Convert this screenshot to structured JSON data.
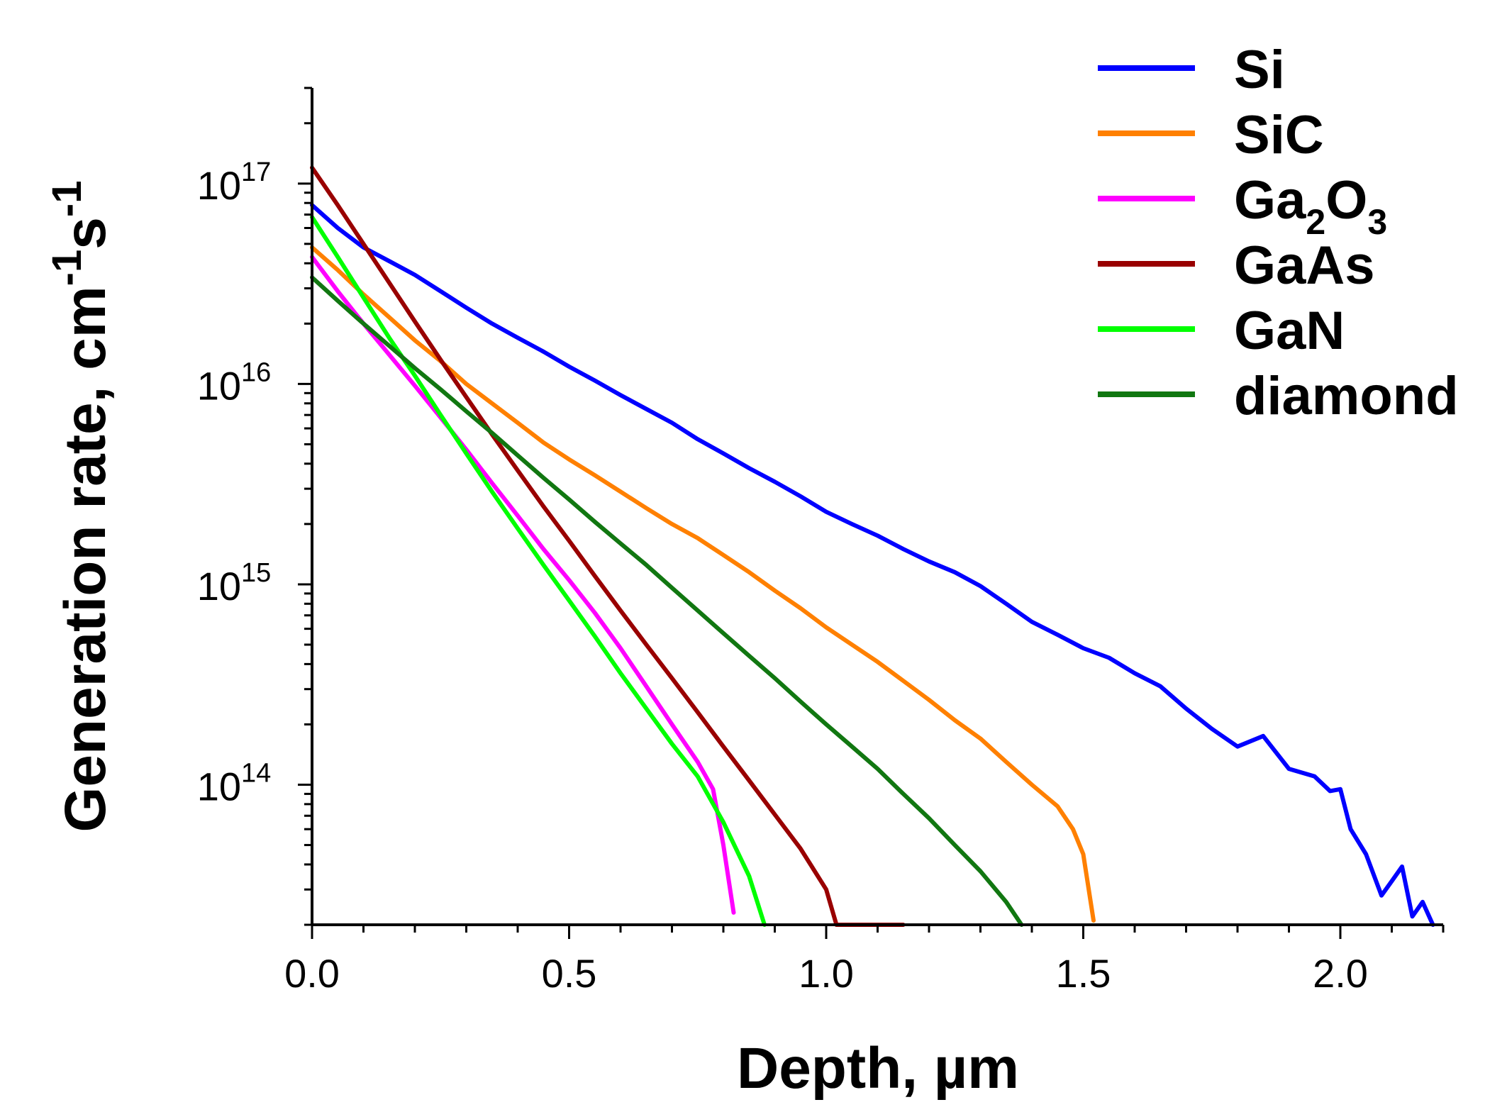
{
  "chart_data": {
    "type": "line",
    "title": "",
    "xlabel": "Depth, µm",
    "ylabel": {
      "base": "Generation rate, cm",
      "exp1": "-1",
      "mid": "s",
      "exp2": "-1"
    },
    "xlim": [
      0,
      2.2
    ],
    "ylim": [
      20000000000000.0,
      3e+17
    ],
    "yscale": "log",
    "x_ticks": [
      {
        "value": 0.0,
        "label": "0.0"
      },
      {
        "value": 0.5,
        "label": "0.5"
      },
      {
        "value": 1.0,
        "label": "1.0"
      },
      {
        "value": 1.5,
        "label": "1.5"
      },
      {
        "value": 2.0,
        "label": "2.0"
      }
    ],
    "y_ticks": [
      {
        "value": 100000000000000.0,
        "base": "10",
        "exp": "14"
      },
      {
        "value": 1000000000000000.0,
        "base": "10",
        "exp": "15"
      },
      {
        "value": 1e+16,
        "base": "10",
        "exp": "16"
      },
      {
        "value": 1e+17,
        "base": "10",
        "exp": "17"
      }
    ],
    "legend_position": "top-right",
    "series": [
      {
        "name": "Si",
        "label_main": "Si",
        "label_sub": "",
        "label_tail": "",
        "color": "#0000ff",
        "x": [
          0,
          0.05,
          0.1,
          0.15,
          0.2,
          0.25,
          0.3,
          0.35,
          0.4,
          0.45,
          0.5,
          0.55,
          0.6,
          0.65,
          0.7,
          0.75,
          0.8,
          0.85,
          0.9,
          0.95,
          1.0,
          1.05,
          1.1,
          1.15,
          1.2,
          1.25,
          1.3,
          1.35,
          1.4,
          1.45,
          1.5,
          1.55,
          1.6,
          1.65,
          1.7,
          1.75,
          1.8,
          1.85,
          1.9,
          1.95,
          1.98,
          2.0,
          2.02,
          2.05,
          2.08,
          2.1,
          2.12,
          2.14,
          2.16,
          2.18
        ],
        "y": [
          7.8e+16,
          6e+16,
          4.8e+16,
          4.1e+16,
          3.5e+16,
          2.9e+16,
          2.4e+16,
          2e+16,
          1.7e+16,
          1.45e+16,
          1.22e+16,
          1.04e+16,
          8800000000000000.0,
          7500000000000000.0,
          6400000000000000.0,
          5300000000000000.0,
          4500000000000000.0,
          3800000000000000.0,
          3250000000000000.0,
          2750000000000000.0,
          2300000000000000.0,
          2000000000000000.0,
          1750000000000000.0,
          1500000000000000.0,
          1300000000000000.0,
          1150000000000000.0,
          980000000000000.0,
          800000000000000.0,
          650000000000000.0,
          560000000000000.0,
          480000000000000.0,
          430000000000000.0,
          360000000000000.0,
          310000000000000.0,
          240000000000000.0,
          190000000000000.0,
          155000000000000.0,
          175000000000000.0,
          120000000000000.0,
          110000000000000.0,
          93000000000000.0,
          95000000000000.0,
          60000000000000.0,
          45000000000000.0,
          28000000000000.0,
          33000000000000.0,
          39000000000000.0,
          22000000000000.0,
          26000000000000.0,
          20000000000000.0
        ]
      },
      {
        "name": "SiC",
        "label_main": "SiC",
        "label_sub": "",
        "label_tail": "",
        "color": "#ff8000",
        "x": [
          0,
          0.05,
          0.1,
          0.15,
          0.2,
          0.25,
          0.3,
          0.35,
          0.4,
          0.45,
          0.5,
          0.55,
          0.6,
          0.65,
          0.7,
          0.75,
          0.8,
          0.85,
          0.9,
          0.95,
          1.0,
          1.05,
          1.1,
          1.15,
          1.2,
          1.25,
          1.3,
          1.35,
          1.4,
          1.45,
          1.48,
          1.5,
          1.52
        ],
        "y": [
          4.8e+16,
          3.7e+16,
          2.8e+16,
          2.15e+16,
          1.65e+16,
          1.3e+16,
          1e+16,
          8000000000000000.0,
          6400000000000000.0,
          5100000000000000.0,
          4200000000000000.0,
          3500000000000000.0,
          2900000000000000.0,
          2400000000000000.0,
          2000000000000000.0,
          1700000000000000.0,
          1400000000000000.0,
          1150000000000000.0,
          930000000000000.0,
          760000000000000.0,
          610000000000000.0,
          500000000000000.0,
          410000000000000.0,
          330000000000000.0,
          265000000000000.0,
          210000000000000.0,
          170000000000000.0,
          130000000000000.0,
          100000000000000.0,
          78000000000000.0,
          60000000000000.0,
          45000000000000.0,
          21000000000000.0
        ]
      },
      {
        "name": "Ga2O3",
        "label_main": "Ga",
        "label_sub": "2",
        "label_tail": "O",
        "label_sub2": "3",
        "color": "#ff00ff",
        "x": [
          0,
          0.05,
          0.1,
          0.15,
          0.2,
          0.25,
          0.3,
          0.35,
          0.4,
          0.45,
          0.5,
          0.55,
          0.6,
          0.65,
          0.7,
          0.75,
          0.78,
          0.8,
          0.82
        ],
        "y": [
          4.3e+16,
          2.9e+16,
          2e+16,
          1.4e+16,
          9800000000000000.0,
          6800000000000000.0,
          4700000000000000.0,
          3200000000000000.0,
          2200000000000000.0,
          1500000000000000.0,
          1050000000000000.0,
          720000000000000.0,
          480000000000000.0,
          310000000000000.0,
          200000000000000.0,
          130000000000000.0,
          95000000000000.0,
          50000000000000.0,
          23000000000000.0
        ]
      },
      {
        "name": "GaAs",
        "label_main": "GaAs",
        "label_sub": "",
        "label_tail": "",
        "color": "#990000",
        "x": [
          0,
          0.05,
          0.1,
          0.15,
          0.2,
          0.25,
          0.3,
          0.35,
          0.4,
          0.45,
          0.5,
          0.55,
          0.6,
          0.65,
          0.7,
          0.75,
          0.8,
          0.85,
          0.9,
          0.95,
          1.0,
          1.02,
          1.05,
          1.1,
          1.15
        ],
        "y": [
          1.2e+17,
          7.8e+16,
          5e+16,
          3.2e+16,
          2.05e+16,
          1.32e+16,
          8600000000000000.0,
          5600000000000000.0,
          3700000000000000.0,
          2450000000000000.0,
          1650000000000000.0,
          1100000000000000.0,
          740000000000000.0,
          500000000000000.0,
          340000000000000.0,
          230000000000000.0,
          155000000000000.0,
          105000000000000.0,
          71000000000000.0,
          48000000000000.0,
          30000000000000.0,
          20000000000000.0,
          20000000000000.0,
          20000000000000.0,
          20000000000000.0
        ]
      },
      {
        "name": "GaN",
        "label_main": "GaN",
        "label_sub": "",
        "label_tail": "",
        "color": "#00ff00",
        "x": [
          0,
          0.05,
          0.1,
          0.15,
          0.2,
          0.25,
          0.3,
          0.35,
          0.4,
          0.45,
          0.5,
          0.55,
          0.6,
          0.65,
          0.7,
          0.75,
          0.8,
          0.85,
          0.88
        ],
        "y": [
          6.8e+16,
          4.3e+16,
          2.7e+16,
          1.7e+16,
          1.1e+16,
          7000000000000000.0,
          4500000000000000.0,
          2900000000000000.0,
          1900000000000000.0,
          1250000000000000.0,
          830000000000000.0,
          550000000000000.0,
          360000000000000.0,
          240000000000000.0,
          160000000000000.0,
          110000000000000.0,
          65000000000000.0,
          35000000000000.0,
          20000000000000.0
        ]
      },
      {
        "name": "diamond",
        "label_main": "diamond",
        "label_sub": "",
        "label_tail": "",
        "color": "#117711",
        "x": [
          0,
          0.05,
          0.1,
          0.15,
          0.2,
          0.25,
          0.3,
          0.35,
          0.4,
          0.45,
          0.5,
          0.55,
          0.6,
          0.65,
          0.7,
          0.75,
          0.8,
          0.85,
          0.9,
          0.95,
          1.0,
          1.05,
          1.1,
          1.15,
          1.2,
          1.25,
          1.3,
          1.35,
          1.38
        ],
        "y": [
          3.4e+16,
          2.6e+16,
          2e+16,
          1.55e+16,
          1.2e+16,
          9400000000000000.0,
          7300000000000000.0,
          5700000000000000.0,
          4400000000000000.0,
          3400000000000000.0,
          2650000000000000.0,
          2050000000000000.0,
          1600000000000000.0,
          1250000000000000.0,
          960000000000000.0,
          740000000000000.0,
          570000000000000.0,
          440000000000000.0,
          340000000000000.0,
          260000000000000.0,
          200000000000000.0,
          155000000000000.0,
          120000000000000.0,
          90000000000000.0,
          68000000000000.0,
          50000000000000.0,
          37000000000000.0,
          26000000000000.0,
          20000000000000.0
        ]
      }
    ]
  }
}
